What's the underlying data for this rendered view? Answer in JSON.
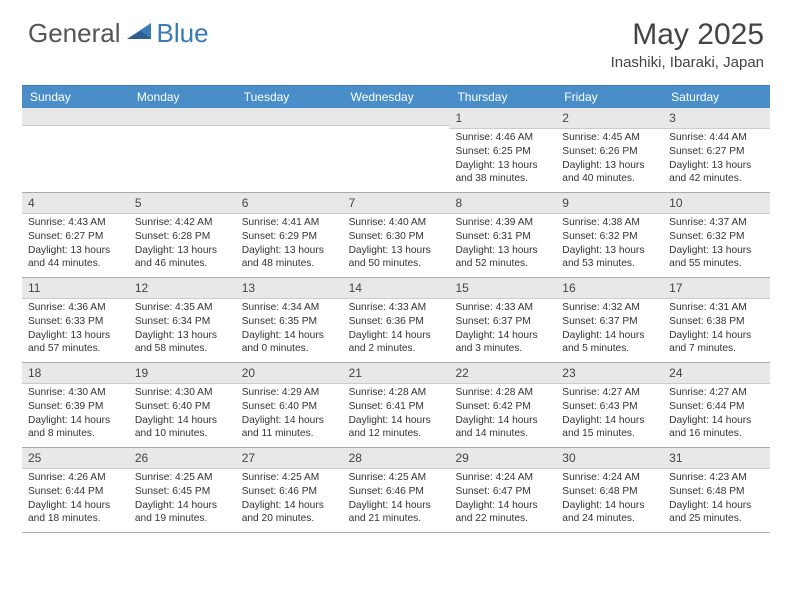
{
  "brand": {
    "general": "General",
    "blue": "Blue"
  },
  "title": "May 2025",
  "location": "Inashiki, Ibaraki, Japan",
  "colors": {
    "header_bg": "#4a8ec9",
    "accent": "#3a7ab8",
    "daynum_bg": "#e8e8e8",
    "text": "#333333",
    "page_bg": "#ffffff"
  },
  "weekdays": [
    "Sunday",
    "Monday",
    "Tuesday",
    "Wednesday",
    "Thursday",
    "Friday",
    "Saturday"
  ],
  "layout": {
    "first_weekday_index": 4,
    "days_in_month": 31
  },
  "days": {
    "1": {
      "sunrise": "4:46 AM",
      "sunset": "6:25 PM",
      "daylight": "13 hours and 38 minutes."
    },
    "2": {
      "sunrise": "4:45 AM",
      "sunset": "6:26 PM",
      "daylight": "13 hours and 40 minutes."
    },
    "3": {
      "sunrise": "4:44 AM",
      "sunset": "6:27 PM",
      "daylight": "13 hours and 42 minutes."
    },
    "4": {
      "sunrise": "4:43 AM",
      "sunset": "6:27 PM",
      "daylight": "13 hours and 44 minutes."
    },
    "5": {
      "sunrise": "4:42 AM",
      "sunset": "6:28 PM",
      "daylight": "13 hours and 46 minutes."
    },
    "6": {
      "sunrise": "4:41 AM",
      "sunset": "6:29 PM",
      "daylight": "13 hours and 48 minutes."
    },
    "7": {
      "sunrise": "4:40 AM",
      "sunset": "6:30 PM",
      "daylight": "13 hours and 50 minutes."
    },
    "8": {
      "sunrise": "4:39 AM",
      "sunset": "6:31 PM",
      "daylight": "13 hours and 52 minutes."
    },
    "9": {
      "sunrise": "4:38 AM",
      "sunset": "6:32 PM",
      "daylight": "13 hours and 53 minutes."
    },
    "10": {
      "sunrise": "4:37 AM",
      "sunset": "6:32 PM",
      "daylight": "13 hours and 55 minutes."
    },
    "11": {
      "sunrise": "4:36 AM",
      "sunset": "6:33 PM",
      "daylight": "13 hours and 57 minutes."
    },
    "12": {
      "sunrise": "4:35 AM",
      "sunset": "6:34 PM",
      "daylight": "13 hours and 58 minutes."
    },
    "13": {
      "sunrise": "4:34 AM",
      "sunset": "6:35 PM",
      "daylight": "14 hours and 0 minutes."
    },
    "14": {
      "sunrise": "4:33 AM",
      "sunset": "6:36 PM",
      "daylight": "14 hours and 2 minutes."
    },
    "15": {
      "sunrise": "4:33 AM",
      "sunset": "6:37 PM",
      "daylight": "14 hours and 3 minutes."
    },
    "16": {
      "sunrise": "4:32 AM",
      "sunset": "6:37 PM",
      "daylight": "14 hours and 5 minutes."
    },
    "17": {
      "sunrise": "4:31 AM",
      "sunset": "6:38 PM",
      "daylight": "14 hours and 7 minutes."
    },
    "18": {
      "sunrise": "4:30 AM",
      "sunset": "6:39 PM",
      "daylight": "14 hours and 8 minutes."
    },
    "19": {
      "sunrise": "4:30 AM",
      "sunset": "6:40 PM",
      "daylight": "14 hours and 10 minutes."
    },
    "20": {
      "sunrise": "4:29 AM",
      "sunset": "6:40 PM",
      "daylight": "14 hours and 11 minutes."
    },
    "21": {
      "sunrise": "4:28 AM",
      "sunset": "6:41 PM",
      "daylight": "14 hours and 12 minutes."
    },
    "22": {
      "sunrise": "4:28 AM",
      "sunset": "6:42 PM",
      "daylight": "14 hours and 14 minutes."
    },
    "23": {
      "sunrise": "4:27 AM",
      "sunset": "6:43 PM",
      "daylight": "14 hours and 15 minutes."
    },
    "24": {
      "sunrise": "4:27 AM",
      "sunset": "6:44 PM",
      "daylight": "14 hours and 16 minutes."
    },
    "25": {
      "sunrise": "4:26 AM",
      "sunset": "6:44 PM",
      "daylight": "14 hours and 18 minutes."
    },
    "26": {
      "sunrise": "4:25 AM",
      "sunset": "6:45 PM",
      "daylight": "14 hours and 19 minutes."
    },
    "27": {
      "sunrise": "4:25 AM",
      "sunset": "6:46 PM",
      "daylight": "14 hours and 20 minutes."
    },
    "28": {
      "sunrise": "4:25 AM",
      "sunset": "6:46 PM",
      "daylight": "14 hours and 21 minutes."
    },
    "29": {
      "sunrise": "4:24 AM",
      "sunset": "6:47 PM",
      "daylight": "14 hours and 22 minutes."
    },
    "30": {
      "sunrise": "4:24 AM",
      "sunset": "6:48 PM",
      "daylight": "14 hours and 24 minutes."
    },
    "31": {
      "sunrise": "4:23 AM",
      "sunset": "6:48 PM",
      "daylight": "14 hours and 25 minutes."
    }
  },
  "labels": {
    "sunrise": "Sunrise:",
    "sunset": "Sunset:",
    "daylight": "Daylight:"
  }
}
